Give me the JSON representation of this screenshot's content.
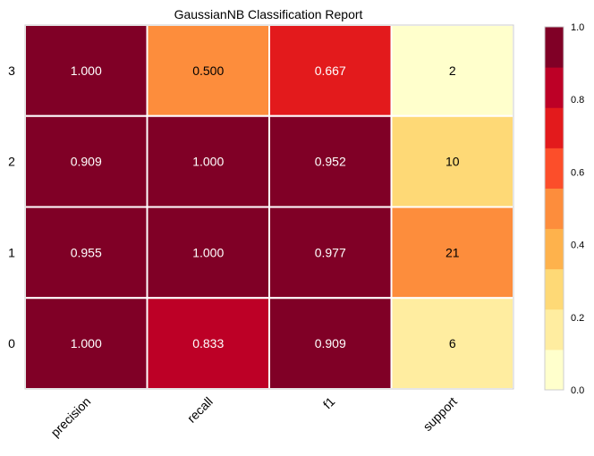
{
  "chart_data": {
    "type": "heatmap",
    "title": "GaussianNB Classification Report",
    "xlabel": "",
    "ylabel": "",
    "columns": [
      "precision",
      "recall",
      "f1",
      "support"
    ],
    "rows": [
      "3",
      "2",
      "1",
      "0"
    ],
    "cells": [
      [
        "1.000",
        "0.500",
        "0.667",
        "2"
      ],
      [
        "0.909",
        "1.000",
        "0.952",
        "10"
      ],
      [
        "0.955",
        "1.000",
        "0.977",
        "21"
      ],
      [
        "1.000",
        "0.833",
        "0.909",
        "6"
      ]
    ],
    "cell_colors": [
      [
        "#800026",
        "#fd8d3c",
        "#e31a1c",
        "#ffffcc"
      ],
      [
        "#800026",
        "#800026",
        "#800026",
        "#fed976"
      ],
      [
        "#800026",
        "#800026",
        "#800026",
        "#fd8d3c"
      ],
      [
        "#800026",
        "#bd0026",
        "#800026",
        "#ffeda0"
      ]
    ],
    "text_colors": [
      [
        "#ffffff",
        "#000000",
        "#ffffff",
        "#000000"
      ],
      [
        "#ffffff",
        "#ffffff",
        "#ffffff",
        "#000000"
      ],
      [
        "#ffffff",
        "#ffffff",
        "#ffffff",
        "#000000"
      ],
      [
        "#ffffff",
        "#ffffff",
        "#ffffff",
        "#000000"
      ]
    ],
    "colorbar": {
      "colors": [
        "#ffffcc",
        "#ffeda0",
        "#fed976",
        "#feb24c",
        "#fd8d3c",
        "#fc4e2a",
        "#e31a1c",
        "#bd0026",
        "#800026"
      ],
      "range": [
        0.0,
        1.0
      ],
      "ticks": [
        "0.0",
        "0.2",
        "0.4",
        "0.6",
        "0.8",
        "1.0"
      ]
    },
    "grid": false,
    "legend": "colorbar-right"
  }
}
